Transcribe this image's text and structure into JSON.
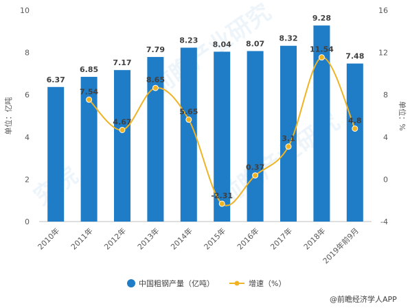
{
  "chart_data": {
    "type": "bar",
    "categories": [
      "2010年",
      "2011年",
      "2012年",
      "2013年",
      "2014年",
      "2015年",
      "2016年",
      "2017年",
      "2018年",
      "2019年前9月"
    ],
    "series": [
      {
        "name": "中国粗钢产量（亿吨）",
        "type": "bar",
        "axis": "left",
        "values": [
          6.37,
          6.85,
          7.17,
          7.79,
          8.23,
          8.04,
          8.07,
          8.32,
          9.28,
          7.48
        ],
        "color": "#1f7cc7"
      },
      {
        "name": "增速（%）",
        "type": "line",
        "axis": "right",
        "values": [
          null,
          7.54,
          4.67,
          8.65,
          5.65,
          -2.31,
          0.37,
          3.1,
          11.54,
          4.8
        ],
        "color": "#f0b323"
      }
    ],
    "ylabel_left": "单位：亿吨",
    "ylabel_right": "单位：%",
    "ylim_left": [
      0,
      10
    ],
    "ylim_right": [
      -4,
      16
    ],
    "yticks_left": [
      "0",
      "2",
      "4",
      "6",
      "8",
      "10"
    ],
    "yticks_right": [
      "-4",
      "0",
      "4",
      "8",
      "12",
      "16"
    ],
    "legend_position": "bottom",
    "grid": false
  },
  "credit": "@前瞻经济学人APP"
}
